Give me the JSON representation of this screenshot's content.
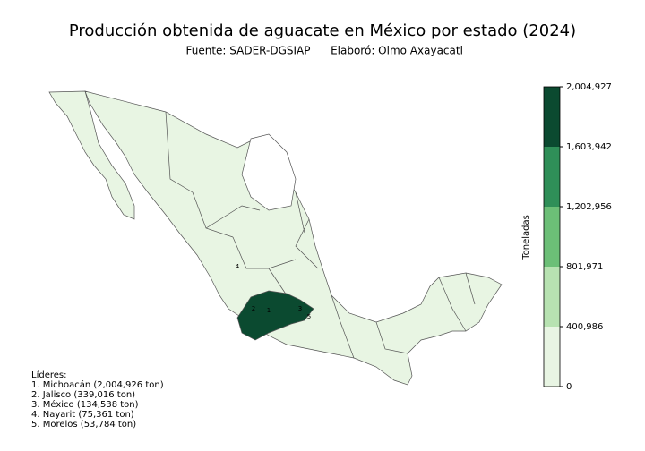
{
  "title": "Producción obtenida de aguacate en México por estado (2024)",
  "source": "Fuente: SADER-DGSIAP",
  "author": "Elaboró: Olmo Axayacatl",
  "colorbar": {
    "label": "Toneladas",
    "lim": [
      0,
      2004927
    ],
    "ticks": [
      0,
      {
        "value": 400986,
        "label": "400,986"
      },
      {
        "value": 801971,
        "label": "801,971"
      },
      {
        "value": 1202956,
        "label": "1,202,956"
      },
      {
        "value": 1603942,
        "label": "1,603,942"
      },
      {
        "value": 2004927,
        "label": "2,004,927"
      }
    ],
    "colors": [
      "#e8f5e3",
      "#b7e2b1",
      "#6cbf77",
      "#2f8f58",
      "#0b4a30"
    ]
  },
  "leaders": {
    "title": "Líderes:",
    "items": [
      {
        "text": "1. Michoacán (2,004,926 ton)",
        "map_label": "1",
        "value": 2004926
      },
      {
        "text": "2. Jalisco (339,016 ton)",
        "map_label": "2",
        "value": 339016
      },
      {
        "text": "3. México (134,538 ton)",
        "map_label": "3",
        "value": 134538
      },
      {
        "text": "4. Nayarit (75,361 ton)",
        "map_label": "4",
        "value": 75361
      },
      {
        "text": "5. Morelos (53,784 ton)",
        "map_label": "5",
        "value": 53784
      }
    ]
  }
}
